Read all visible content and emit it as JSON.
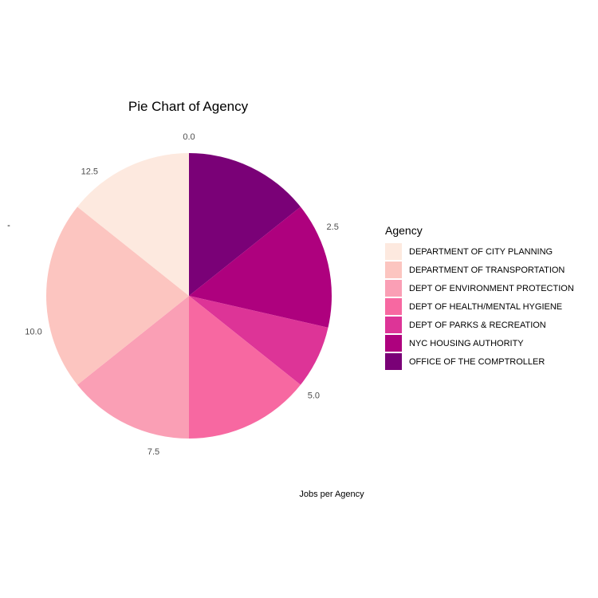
{
  "chart_data": {
    "type": "pie",
    "title": "Pie Chart of Agency",
    "xlabel": "Jobs per Agency",
    "ylabel": "-",
    "total": 14,
    "theta_ticks": [
      "0.0",
      "2.5",
      "5.0",
      "7.5",
      "10.0",
      "12.5"
    ],
    "theta_tick_values": [
      0,
      2.5,
      5,
      7.5,
      10,
      12.5
    ],
    "legend": {
      "title": "Agency",
      "position": "right"
    },
    "slices": [
      {
        "label": "OFFICE OF THE COMPTROLLER",
        "value": 2,
        "color": "#7A0177"
      },
      {
        "label": "NYC HOUSING AUTHORITY",
        "value": 2,
        "color": "#AE017E"
      },
      {
        "label": "DEPT OF PARKS & RECREATION",
        "value": 1,
        "color": "#DD3497"
      },
      {
        "label": "DEPT OF HEALTH/MENTAL HYGIENE",
        "value": 2,
        "color": "#F768A1"
      },
      {
        "label": "DEPT OF ENVIRONMENT PROTECTION",
        "value": 2,
        "color": "#FA9FB5"
      },
      {
        "label": "DEPARTMENT OF TRANSPORTATION",
        "value": 3,
        "color": "#FCC5C0"
      },
      {
        "label": "DEPARTMENT OF CITY PLANNING",
        "value": 2,
        "color": "#FDE9DF"
      }
    ],
    "legend_order": [
      "DEPARTMENT OF CITY PLANNING",
      "DEPARTMENT OF TRANSPORTATION",
      "DEPT OF ENVIRONMENT PROTECTION",
      "DEPT OF HEALTH/MENTAL HYGIENE",
      "DEPT OF PARKS & RECREATION",
      "NYC HOUSING AUTHORITY",
      "OFFICE OF THE COMPTROLLER"
    ]
  }
}
